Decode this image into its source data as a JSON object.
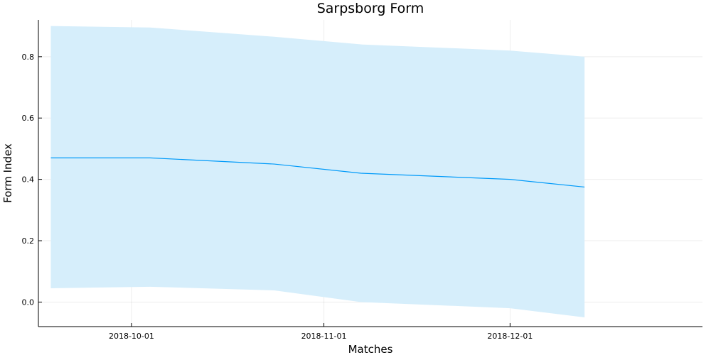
{
  "chart_data": {
    "type": "area",
    "title": "Sarpsborg Form",
    "xlabel": "Matches",
    "ylabel": "Form Index",
    "x_tick_labels": [
      "2018-10-01",
      "2018-11-01",
      "2018-12-01"
    ],
    "y_tick_labels": [
      "0.0",
      "0.2",
      "0.4",
      "0.6",
      "0.8"
    ],
    "ylim": [
      -0.08,
      0.92
    ],
    "xlim": [
      "2018-09-16",
      "2019-01-01"
    ],
    "grid": true,
    "legend": "none",
    "colors": {
      "line": "#009af9",
      "band": "#d6eefb"
    },
    "series": [
      {
        "x": [
          "2018-09-18",
          "2018-10-04",
          "2018-10-24",
          "2018-11-07",
          "2018-12-01",
          "2018-12-13"
        ],
        "mean": [
          0.47,
          0.47,
          0.45,
          0.42,
          0.4,
          0.375
        ],
        "lower": [
          0.045,
          0.05,
          0.038,
          0.0,
          -0.02,
          -0.05
        ],
        "upper": [
          0.9,
          0.895,
          0.865,
          0.84,
          0.82,
          0.8
        ]
      }
    ]
  }
}
